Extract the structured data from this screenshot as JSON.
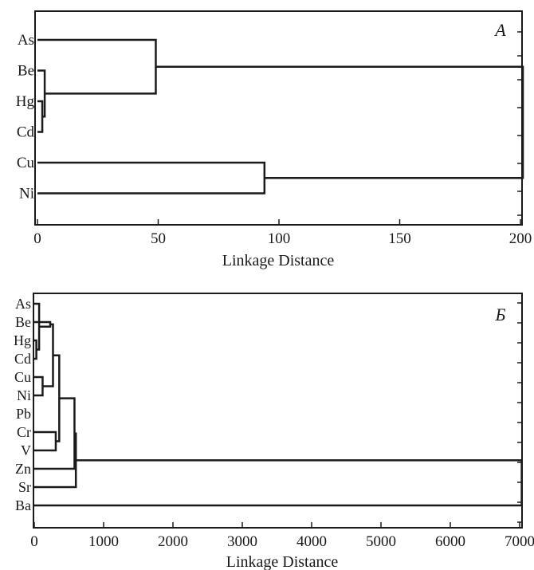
{
  "chart_data": [
    {
      "type": "dendrogram",
      "panel_label": "A",
      "xlabel": "Linkage Distance",
      "xlim": [
        0,
        200
      ],
      "xticks": [
        0,
        50,
        100,
        150,
        200
      ],
      "xtick_labels": [
        "0",
        "50",
        "100",
        "150",
        "200"
      ],
      "leaves": [
        "As",
        "Be",
        "Hg",
        "Cd",
        "Cu",
        "Ni"
      ],
      "merges": [
        {
          "left": "Hg",
          "right": "Cd",
          "distance": 2
        },
        {
          "left": "Be",
          "right": "c1",
          "distance": 3
        },
        {
          "left": "As",
          "right": "c2",
          "distance": 49
        },
        {
          "left": "Cu",
          "right": "Ni",
          "distance": 94
        },
        {
          "left": "c3",
          "right": "c4",
          "distance": 201
        }
      ]
    },
    {
      "type": "dendrogram",
      "panel_label": "Б",
      "xlabel": "Linkage Distance",
      "xlim": [
        0,
        7000
      ],
      "xticks": [
        0,
        1000,
        2000,
        3000,
        4000,
        5000,
        6000,
        7000
      ],
      "xtick_labels": [
        "0",
        "1000",
        "2000",
        "3000",
        "4000",
        "5000",
        "6000",
        "7000"
      ],
      "leaves": [
        "As",
        "Be",
        "Hg",
        "Cd",
        "Cu",
        "Ni",
        "Pb",
        "Cr",
        "V",
        "Zn",
        "Sr",
        "Ba"
      ],
      "merges": [
        {
          "left": "Hg",
          "right": "Cd",
          "distance": 30
        },
        {
          "left": "As",
          "right": "c1",
          "distance": 70
        },
        {
          "left": "Cu",
          "right": "Ni",
          "distance": 120
        },
        {
          "left": "Be",
          "right": "c2",
          "distance": 230
        },
        {
          "left": "c4",
          "right": "c3",
          "distance": 270
        },
        {
          "left": "Cr",
          "right": "V",
          "distance": 310
        },
        {
          "left": "c5",
          "right": "c6",
          "distance": 360
        },
        {
          "left": "c7",
          "right": "Zn",
          "distance": 580
        },
        {
          "left": "c8",
          "right": "Sr",
          "distance": 600
        },
        {
          "left": "c9",
          "right": "Ba",
          "distance": 7030
        }
      ]
    }
  ]
}
